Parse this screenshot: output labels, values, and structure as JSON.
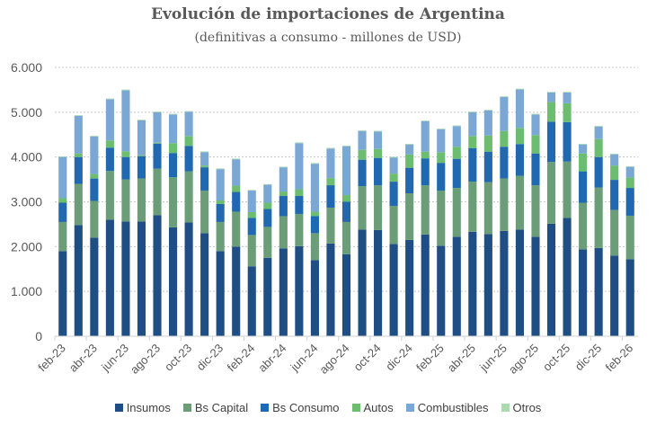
{
  "chart_data": {
    "type": "bar",
    "stacked": true,
    "title": "Evolución de importaciones de Argentina",
    "subtitle": "(definitivas a consumo - millones de USD)",
    "xlabel": "",
    "ylabel": "",
    "ylim": [
      0,
      6000
    ],
    "yticks": [
      0,
      1000,
      2000,
      3000,
      4000,
      5000,
      6000
    ],
    "ytick_labels": [
      "0",
      "1.000",
      "2.000",
      "3.000",
      "4.000",
      "5.000",
      "6.000"
    ],
    "grid": true,
    "legend_position": "bottom",
    "categories": [
      "feb-23",
      "mar-23",
      "abr-23",
      "may-23",
      "jun-23",
      "jul-23",
      "ago-23",
      "sep-23",
      "oct-23",
      "nov-23",
      "dic-23",
      "ene-24",
      "feb-24",
      "mar-24",
      "abr-24",
      "may-24",
      "jun-24",
      "jul-24",
      "ago-24",
      "sep-24",
      "oct-24",
      "nov-24",
      "dic-24",
      "ene-25",
      "feb-25",
      "mar-25",
      "abr-25",
      "may-25",
      "jun-25",
      "jul-25",
      "ago-25",
      "sep-25",
      "oct-25",
      "nov-25",
      "dic-25",
      "ene-26",
      "feb-26"
    ],
    "shown_xtick_labels": [
      "feb-23",
      "abr-23",
      "jun-23",
      "ago-23",
      "oct-23",
      "dic-23",
      "feb-24",
      "abr-24",
      "jun-24",
      "ago-24",
      "oct-24",
      "dic-24",
      "feb-25",
      "abr-25",
      "jun-25",
      "ago-25",
      "oct-25",
      "dic-25",
      "feb-26"
    ],
    "series": [
      {
        "name": "Insumos",
        "color": "#1f4e84",
        "values": [
          1900,
          2480,
          2200,
          2600,
          2560,
          2560,
          2700,
          2430,
          2540,
          2300,
          1900,
          2000,
          1560,
          1750,
          1960,
          2010,
          1700,
          2070,
          1830,
          2380,
          2370,
          2060,
          2150,
          2270,
          2020,
          2220,
          2330,
          2280,
          2350,
          2380,
          2220,
          2510,
          2640,
          1940,
          1970,
          1800,
          1720
        ]
      },
      {
        "name": "Bs Capital",
        "color": "#6b9e78",
        "values": [
          650,
          920,
          820,
          1090,
          940,
          960,
          1040,
          1120,
          1140,
          950,
          650,
          780,
          700,
          690,
          720,
          720,
          600,
          800,
          720,
          970,
          1000,
          850,
          1040,
          1100,
          1230,
          1090,
          1120,
          1160,
          1170,
          1200,
          1150,
          1380,
          1260,
          1040,
          1350,
          1020,
          970
        ]
      },
      {
        "name": "Bs Consumo",
        "color": "#2068b0",
        "values": [
          430,
          600,
          500,
          520,
          500,
          500,
          560,
          540,
          570,
          520,
          400,
          440,
          380,
          400,
          450,
          400,
          380,
          500,
          450,
          590,
          610,
          540,
          570,
          600,
          620,
          650,
          750,
          680,
          710,
          710,
          710,
          900,
          880,
          700,
          680,
          670,
          620
        ]
      },
      {
        "name": "Autos",
        "color": "#6cbd70",
        "values": [
          100,
          80,
          100,
          160,
          130,
          20,
          20,
          220,
          220,
          40,
          80,
          140,
          130,
          140,
          100,
          150,
          100,
          160,
          150,
          220,
          200,
          180,
          300,
          150,
          240,
          270,
          270,
          360,
          350,
          360,
          410,
          440,
          420,
          400,
          400,
          320,
          230
        ]
      },
      {
        "name": "Combustibles",
        "color": "#7ba7d4",
        "values": [
          920,
          840,
          840,
          920,
          1360,
          780,
          680,
          640,
          540,
          300,
          700,
          590,
          480,
          400,
          540,
          1030,
          1070,
          660,
          1090,
          420,
          390,
          360,
          220,
          680,
          510,
          460,
          530,
          560,
          760,
          860,
          460,
          210,
          240,
          200,
          280,
          250,
          240
        ]
      },
      {
        "name": "Otros",
        "color": "#a8dcae",
        "values": [
          15,
          15,
          15,
          15,
          15,
          15,
          15,
          15,
          15,
          15,
          15,
          15,
          15,
          15,
          15,
          15,
          15,
          15,
          15,
          15,
          15,
          15,
          15,
          15,
          15,
          15,
          15,
          15,
          15,
          15,
          15,
          15,
          15,
          15,
          15,
          15,
          15
        ]
      }
    ]
  }
}
